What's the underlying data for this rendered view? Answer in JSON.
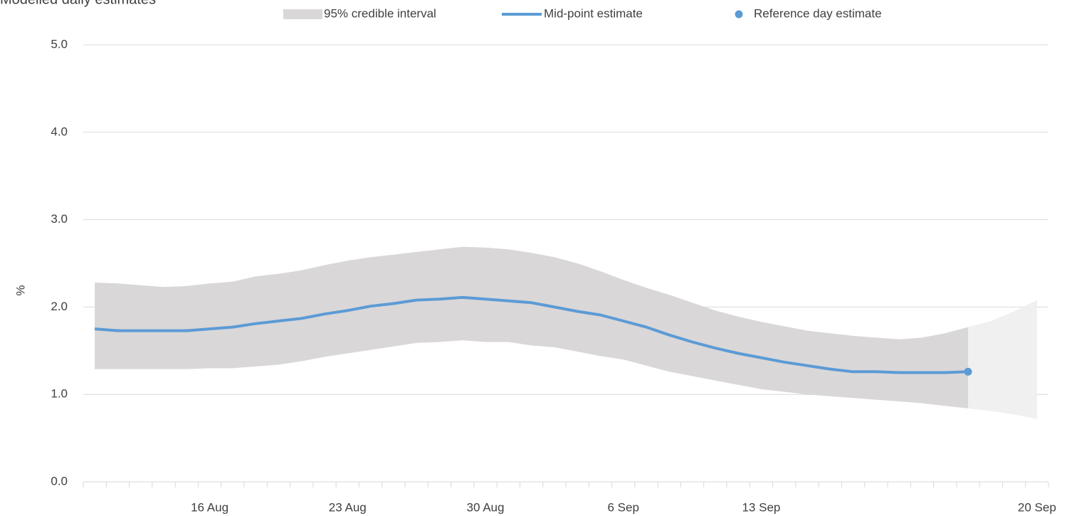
{
  "chart_data": {
    "type": "line",
    "title": "Modelled daily estimates",
    "y_label": "%",
    "categories": [
      null,
      null,
      null,
      null,
      null,
      "16 Aug",
      null,
      null,
      null,
      null,
      null,
      "23 Aug",
      null,
      null,
      null,
      null,
      null,
      "30 Aug",
      null,
      null,
      null,
      null,
      null,
      "6 Sep",
      null,
      null,
      null,
      null,
      null,
      "13 Sep",
      null,
      null,
      null,
      null,
      null,
      null,
      null,
      null,
      null,
      null,
      null,
      "20 Sep"
    ],
    "band": {
      "name": "95% credible interval",
      "color": "#d9d7d8",
      "extension_color": "#f0f0f0",
      "upper": [
        2.28,
        2.27,
        2.25,
        2.23,
        2.24,
        2.27,
        2.29,
        2.35,
        2.38,
        2.42,
        2.48,
        2.53,
        2.57,
        2.6,
        2.63,
        2.66,
        2.69,
        2.68,
        2.66,
        2.62,
        2.57,
        2.5,
        2.41,
        2.31,
        2.22,
        2.14,
        2.05,
        1.96,
        1.89,
        1.83,
        1.78,
        1.73,
        1.7,
        1.67,
        1.65,
        1.63,
        1.65,
        1.7,
        1.77,
        1.84,
        1.95,
        2.08
      ],
      "lower": [
        1.29,
        1.29,
        1.29,
        1.29,
        1.29,
        1.3,
        1.3,
        1.32,
        1.34,
        1.38,
        1.43,
        1.47,
        1.51,
        1.55,
        1.59,
        1.6,
        1.62,
        1.6,
        1.6,
        1.56,
        1.54,
        1.49,
        1.44,
        1.4,
        1.33,
        1.26,
        1.21,
        1.16,
        1.11,
        1.06,
        1.03,
        1.0,
        0.98,
        0.96,
        0.94,
        0.92,
        0.9,
        0.87,
        0.84,
        0.81,
        0.77,
        0.72
      ]
    },
    "series": [
      {
        "name": "Mid-point estimate",
        "color": "#5b9bd5",
        "style": "line",
        "values": [
          1.75,
          1.73,
          1.73,
          1.73,
          1.73,
          1.75,
          1.77,
          1.81,
          1.84,
          1.87,
          1.92,
          1.96,
          2.01,
          2.04,
          2.08,
          2.09,
          2.11,
          2.09,
          2.07,
          2.05,
          2.0,
          1.95,
          1.91,
          1.84,
          1.77,
          1.68,
          1.6,
          1.53,
          1.47,
          1.42,
          1.37,
          1.33,
          1.29,
          1.26,
          1.26,
          1.25,
          1.25,
          1.25,
          1.26,
          null,
          null,
          null
        ]
      },
      {
        "name": "Reference day estimate",
        "color": "#5b9bd5",
        "style": "point",
        "values": [
          null,
          null,
          null,
          null,
          null,
          null,
          null,
          null,
          null,
          null,
          null,
          null,
          null,
          null,
          null,
          null,
          null,
          null,
          null,
          null,
          null,
          null,
          null,
          null,
          null,
          null,
          null,
          null,
          null,
          null,
          null,
          null,
          null,
          null,
          null,
          null,
          null,
          null,
          1.26,
          null,
          null,
          null
        ]
      }
    ],
    "ylim": [
      0,
      5
    ],
    "yticks": [
      {
        "value": 0,
        "label": "0.0"
      },
      {
        "value": 1,
        "label": "1.0"
      },
      {
        "value": 2,
        "label": "2.0"
      },
      {
        "value": 3,
        "label": "3.0"
      },
      {
        "value": 4,
        "label": "4.0"
      },
      {
        "value": 5,
        "label": "5.0"
      }
    ],
    "grid": true
  }
}
